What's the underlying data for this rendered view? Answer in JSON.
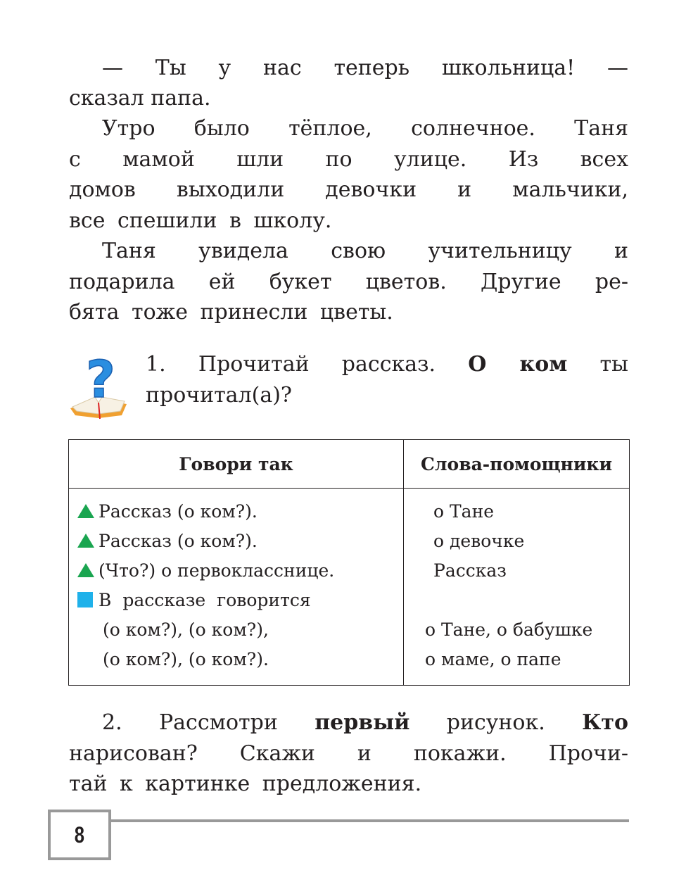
{
  "story": {
    "lines": [
      "— Ты у нас теперь школьница! —",
      "сказал папа.",
      "Утро было тёплое, солнечное. Таня",
      "с мамой шли по улице. Из всех",
      "домов выходили девочки и мальчики,",
      "все спешили в школу.",
      "Таня увидела свою учительницу и",
      "подарила ей букет цветов. Другие ре-",
      "бята тоже принесли цветы."
    ]
  },
  "task1": {
    "icon": "question-book-icon",
    "line1_a": "1. Прочитай рассказ.",
    "line1_bold": "О ком",
    "line1_b": "ты",
    "line2": "прочитал(а)?"
  },
  "table": {
    "headers": [
      "Говори так",
      "Слова-помощники"
    ],
    "left": [
      {
        "marker": "green-triangle",
        "text": "Рассказ (о ком?)."
      },
      {
        "marker": "green-triangle",
        "text": "Рассказ (о ком?)."
      },
      {
        "marker": "green-triangle",
        "text": "(Что?) о первокласснице."
      },
      {
        "marker": "blue-square",
        "text": "В рассказе говорится"
      },
      {
        "marker": "",
        "text": "(о ком?), (о ком?),"
      },
      {
        "marker": "",
        "text": "(о ком?), (о ком?)."
      }
    ],
    "right": [
      "о Тане",
      "о девочке",
      "Рассказ",
      "",
      "о Тане, о бабушке",
      "о маме, о папе"
    ],
    "colors": {
      "triangle": "#1aa550",
      "square": "#1fb1ea"
    }
  },
  "task2": {
    "l1_a": "2. Рассмотри",
    "l1_bold1": "первый",
    "l1_b": "рисунок.",
    "l1_bold2": "Кто",
    "line2": "нарисован? Скажи и покажи. Прочи-",
    "line3": "тай к картинке предложения."
  },
  "footer": {
    "page_number": "8",
    "rule_color": "#999999"
  }
}
